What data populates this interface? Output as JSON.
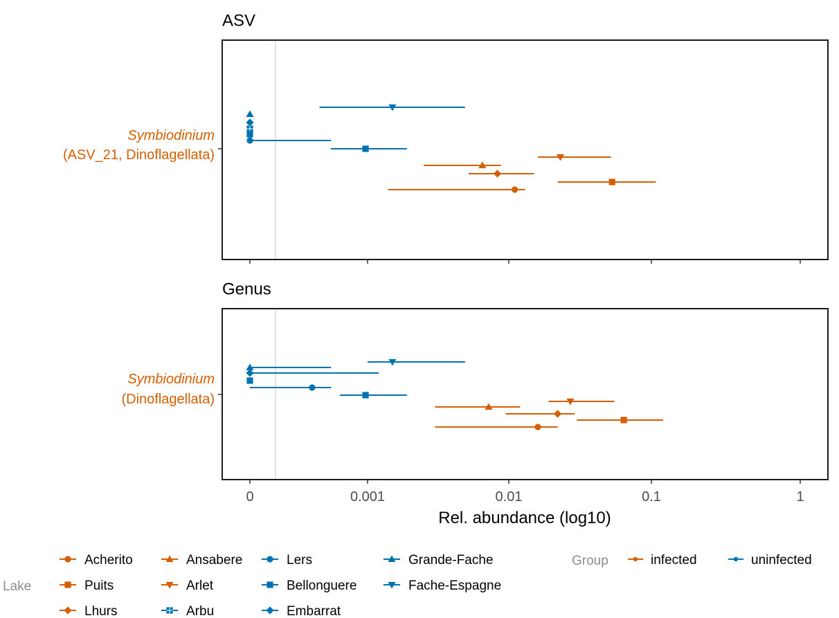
{
  "colors": {
    "infected": "#D55E00",
    "uninfected": "#0072B2",
    "axis_text": "#4d4d4d",
    "legend_title": "#8c8c8c",
    "ref_line": "#d9d9d9"
  },
  "chart_data": {
    "type": "forest",
    "x_axis": {
      "label": "Rel. abundance (log10)",
      "scale": "log10(x+1e-4) style, zero shown",
      "ticks": [
        "0",
        "0.001",
        "0.01",
        "0.1",
        "1"
      ],
      "tick_values": [
        0,
        0.001,
        0.01,
        0.1,
        1
      ],
      "range": [
        0,
        1
      ]
    },
    "reference_line_x": 0.0001,
    "panels": [
      {
        "title": "ASV",
        "y_label_line1": "Symbiodinium",
        "y_label_line2": "(ASV_21, Dinoflagellata)",
        "points": [
          {
            "lake": "Grande-Fache",
            "group": "uninfected",
            "shape": "triangle-up",
            "value": 0,
            "lo": null,
            "hi": null
          },
          {
            "lake": "Embarrat",
            "group": "uninfected",
            "shape": "diamond",
            "value": 0,
            "lo": null,
            "hi": null
          },
          {
            "lake": "Arbu",
            "group": "uninfected",
            "shape": "square-cross",
            "value": 0,
            "lo": null,
            "hi": null
          },
          {
            "lake": "Bellonguere",
            "group": "uninfected",
            "shape": "square",
            "value": 0,
            "lo": null,
            "hi": null
          },
          {
            "lake": "Fache-Espagne",
            "group": "uninfected",
            "shape": "triangle-down",
            "value": 0.0015,
            "lo": 0.0003,
            "hi": 0.0049
          },
          {
            "lake": "Lers",
            "group": "uninfected",
            "shape": "circle",
            "value": 0,
            "lo": 0,
            "hi": 0.0004
          },
          {
            "lake": "Puits",
            "group": "uninfected",
            "shape": "square",
            "value": 0.00095,
            "lo": 0.0004,
            "hi": 0.0019
          },
          {
            "lake": "Arlet",
            "group": "infected",
            "shape": "triangle-down",
            "value": 0.023,
            "lo": 0.016,
            "hi": 0.052
          },
          {
            "lake": "Ansabere",
            "group": "infected",
            "shape": "triangle-up",
            "value": 0.0065,
            "lo": 0.0025,
            "hi": 0.0088
          },
          {
            "lake": "Lhurs",
            "group": "infected",
            "shape": "diamond",
            "value": 0.0083,
            "lo": 0.0052,
            "hi": 0.015
          },
          {
            "lake": "Puits",
            "group": "infected",
            "shape": "square",
            "value": 0.053,
            "lo": 0.022,
            "hi": 0.107
          },
          {
            "lake": "Acherito",
            "group": "infected",
            "shape": "circle",
            "value": 0.011,
            "lo": 0.0014,
            "hi": 0.013
          }
        ]
      },
      {
        "title": "Genus",
        "y_label_line1": "Symbiodinium",
        "y_label_line2": "(Dinoflagellata)",
        "points": [
          {
            "lake": "Grande-Fache",
            "group": "uninfected",
            "shape": "triangle-up",
            "value": 0,
            "lo": 0,
            "hi": 0.0004
          },
          {
            "lake": "Embarrat",
            "group": "uninfected",
            "shape": "diamond",
            "value": 0,
            "lo": 0,
            "hi": 0.0012
          },
          {
            "lake": "Bellonguere",
            "group": "uninfected",
            "shape": "square",
            "value": 0,
            "lo": null,
            "hi": null
          },
          {
            "lake": "Fache-Espagne",
            "group": "uninfected",
            "shape": "triangle-down",
            "value": 0.0015,
            "lo": 0.001,
            "hi": 0.0049
          },
          {
            "lake": "Lers",
            "group": "uninfected",
            "shape": "circle",
            "value": 0.00025,
            "lo": 0,
            "hi": 0.0004
          },
          {
            "lake": "Puits",
            "group": "uninfected",
            "shape": "square",
            "value": 0.00095,
            "lo": 0.0005,
            "hi": 0.0019
          },
          {
            "lake": "Arlet",
            "group": "infected",
            "shape": "triangle-down",
            "value": 0.027,
            "lo": 0.019,
            "hi": 0.055
          },
          {
            "lake": "Ansabere",
            "group": "infected",
            "shape": "triangle-up",
            "value": 0.0072,
            "lo": 0.003,
            "hi": 0.012
          },
          {
            "lake": "Lhurs",
            "group": "infected",
            "shape": "diamond",
            "value": 0.022,
            "lo": 0.0095,
            "hi": 0.029
          },
          {
            "lake": "Puits",
            "group": "infected",
            "shape": "square",
            "value": 0.064,
            "lo": 0.03,
            "hi": 0.12
          },
          {
            "lake": "Acherito",
            "group": "infected",
            "shape": "circle",
            "value": 0.016,
            "lo": 0.003,
            "hi": 0.022
          }
        ]
      }
    ],
    "legend": {
      "lake_title": "Lake",
      "lake_entries": [
        {
          "name": "Acherito",
          "group": "infected",
          "shape": "circle"
        },
        {
          "name": "Ansabere",
          "group": "infected",
          "shape": "triangle-up"
        },
        {
          "name": "Lers",
          "group": "uninfected",
          "shape": "circle"
        },
        {
          "name": "Grande-Fache",
          "group": "uninfected",
          "shape": "triangle-up"
        },
        {
          "name": "Puits",
          "group": "infected",
          "shape": "square"
        },
        {
          "name": "Arlet",
          "group": "infected",
          "shape": "triangle-down"
        },
        {
          "name": "Bellonguere",
          "group": "uninfected",
          "shape": "square"
        },
        {
          "name": "Fache-Espagne",
          "group": "uninfected",
          "shape": "triangle-down"
        },
        {
          "name": "Lhurs",
          "group": "infected",
          "shape": "diamond"
        },
        {
          "name": "Arbu",
          "group": "uninfected",
          "shape": "square-cross"
        },
        {
          "name": "Embarrat",
          "group": "uninfected",
          "shape": "diamond"
        }
      ],
      "group_title": "Group",
      "group_entries": [
        {
          "name": "infected",
          "group": "infected"
        },
        {
          "name": "uninfected",
          "group": "uninfected"
        }
      ]
    }
  }
}
